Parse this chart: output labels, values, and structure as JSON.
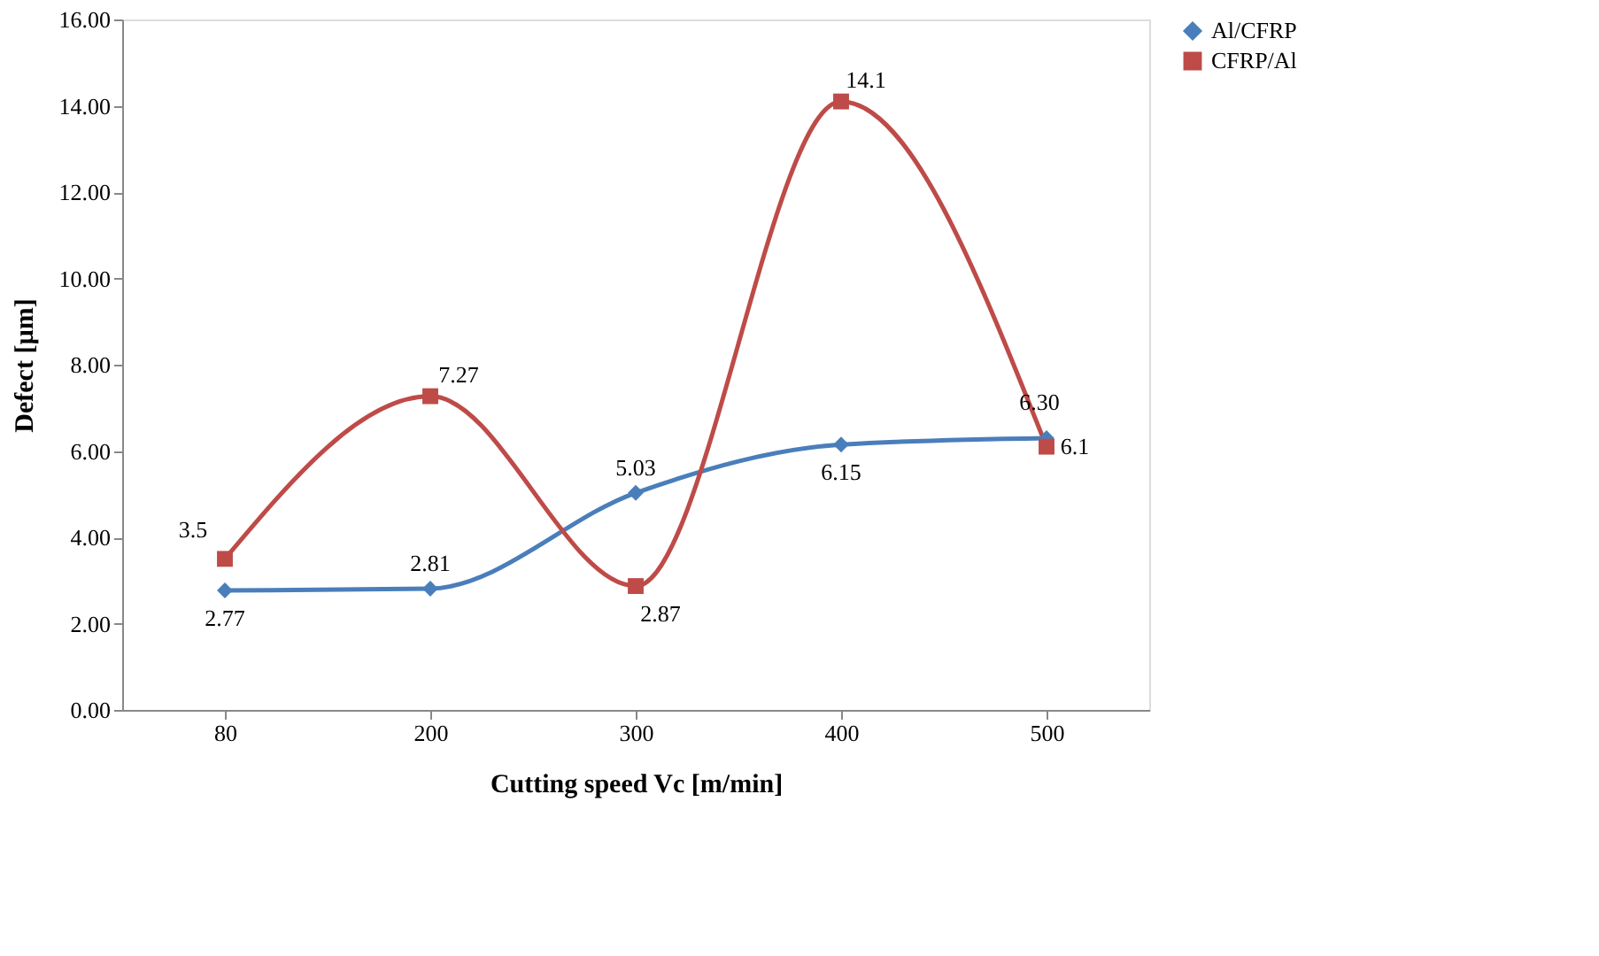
{
  "chart_data": {
    "type": "line",
    "xlabel": "Cutting speed Vc [m/min]",
    "ylabel": "Defect [µm]",
    "categories": [
      "80",
      "200",
      "300",
      "400",
      "500"
    ],
    "ylim": [
      0,
      16
    ],
    "yticks": [
      {
        "value": 0,
        "label": "0.00"
      },
      {
        "value": 2,
        "label": "2.00"
      },
      {
        "value": 4,
        "label": "4.00"
      },
      {
        "value": 6,
        "label": "6.00"
      },
      {
        "value": 8,
        "label": "8.00"
      },
      {
        "value": 10,
        "label": "10.00"
      },
      {
        "value": 12,
        "label": "12.00"
      },
      {
        "value": 14,
        "label": "14.00"
      },
      {
        "value": 16,
        "label": "16.00"
      }
    ],
    "grid": false,
    "legend": "right",
    "line_style": "solid",
    "series": [
      {
        "name": "Al/CFRP",
        "color": "#4a7ebb",
        "marker": "diamond",
        "values": [
          2.77,
          2.81,
          5.03,
          6.15,
          6.3
        ],
        "value_labels": [
          "2.77",
          "2.81",
          "5.03",
          "6.15",
          "6.30"
        ]
      },
      {
        "name": "CFRP/Al",
        "color": "#be4b48",
        "marker": "square",
        "values": [
          3.5,
          7.27,
          2.87,
          14.1,
          6.1
        ],
        "value_labels": [
          "3.5",
          "7.27",
          "2.87",
          "14.1",
          "6.1"
        ]
      }
    ]
  }
}
